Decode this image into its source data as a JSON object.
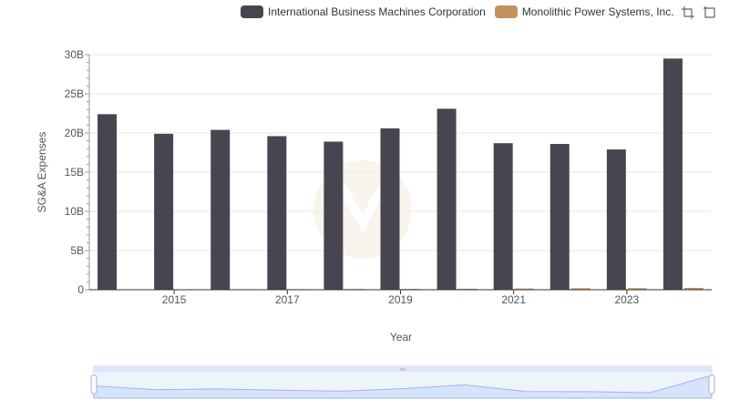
{
  "legend": {
    "items": [
      {
        "label": "International Business Machines Corporation",
        "color": "#474650"
      },
      {
        "label": "Monolithic Power Systems, Inc.",
        "color": "#c4915f"
      }
    ]
  },
  "toolbox": {
    "icons": [
      "zoom-icon",
      "restore-icon"
    ]
  },
  "chart_data": {
    "type": "bar",
    "xlabel": "Year",
    "ylabel": "SG&A Expenses",
    "ylim": [
      0,
      30000000000
    ],
    "y_ticks": [
      "0",
      "5B",
      "10B",
      "15B",
      "20B",
      "25B",
      "30B"
    ],
    "x_tick_labels": [
      "2015",
      "2017",
      "2019",
      "2021",
      "2023"
    ],
    "categories": [
      "2014",
      "2015",
      "2016",
      "2017",
      "2018",
      "2019",
      "2020",
      "2021",
      "2022",
      "2023",
      "2024"
    ],
    "series": [
      {
        "name": "International Business Machines Corporation",
        "color": "#474650",
        "values": [
          22400000000,
          19900000000,
          20400000000,
          19600000000,
          18900000000,
          20600000000,
          23100000000,
          18700000000,
          18600000000,
          17900000000,
          29500000000
        ]
      },
      {
        "name": "Monolithic Power Systems, Inc.",
        "color": "#c4915f",
        "values": [
          50000000,
          55000000,
          62000000,
          75000000,
          90000000,
          103000000,
          120000000,
          150000000,
          190000000,
          200000000,
          230000000
        ]
      }
    ],
    "grid": true,
    "legend_position": "top-right",
    "datazoom": true
  }
}
